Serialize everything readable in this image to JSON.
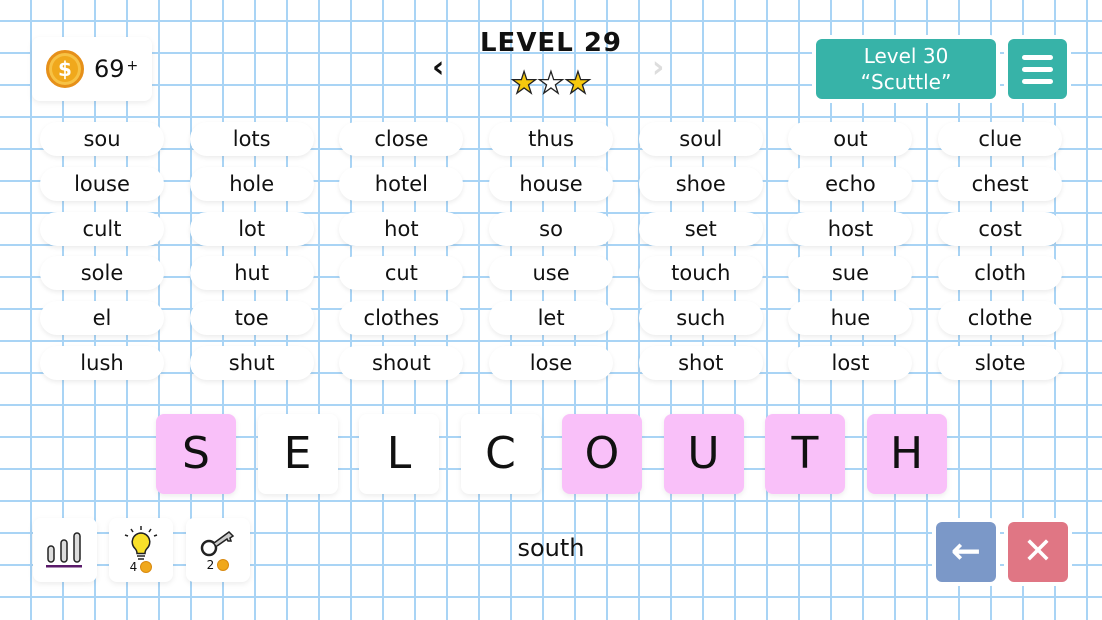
{
  "coins": {
    "count": "69",
    "plus": "+",
    "icon": "dollar-coin-icon",
    "symbol": "$"
  },
  "level": {
    "title": "LEVEL 29",
    "stars": [
      true,
      false,
      true
    ],
    "prev": "‹",
    "next": "›"
  },
  "next_level": {
    "line1": "Level 30",
    "line2": "“Scuttle”"
  },
  "words": [
    "sou",
    "lots",
    "close",
    "thus",
    "soul",
    "out",
    "clue",
    "louse",
    "hole",
    "hotel",
    "house",
    "shoe",
    "echo",
    "chest",
    "cult",
    "lot",
    "hot",
    "so",
    "set",
    "host",
    "cost",
    "sole",
    "hut",
    "cut",
    "use",
    "touch",
    "sue",
    "cloth",
    "el",
    "toe",
    "clothes",
    "let",
    "such",
    "hue",
    "clothe",
    "lush",
    "shut",
    "shout",
    "lose",
    "shot",
    "lost",
    "slote"
  ],
  "tiles": [
    {
      "letter": "S",
      "selected": true
    },
    {
      "letter": "E",
      "selected": false
    },
    {
      "letter": "L",
      "selected": false
    },
    {
      "letter": "C",
      "selected": false
    },
    {
      "letter": "O",
      "selected": true
    },
    {
      "letter": "U",
      "selected": true
    },
    {
      "letter": "T",
      "selected": true
    },
    {
      "letter": "H",
      "selected": true
    }
  ],
  "current_word": "south",
  "tools": {
    "hint_cost": "4",
    "key_cost": "2"
  },
  "colors": {
    "accent": "#37b3a8",
    "selected_tile": "#f9c0f9",
    "back": "#7b98c8",
    "clear": "#e07684",
    "grid": "#a9d4f5"
  }
}
